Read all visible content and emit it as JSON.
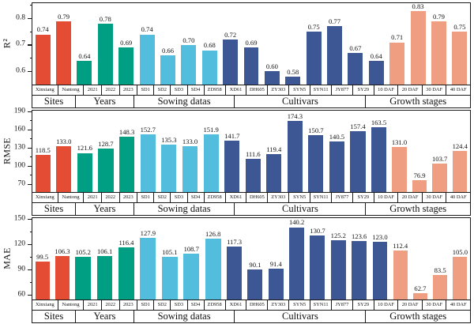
{
  "figure": {
    "background": "#ffffff",
    "axis_color": "#1a1a1a",
    "text_color": "#111111"
  },
  "groups": [
    {
      "label": "Sites",
      "color": "#E44C33",
      "categories": [
        "Xinxiang",
        "Nantong"
      ]
    },
    {
      "label": "Years",
      "color": "#009E82",
      "categories": [
        "2021",
        "2022",
        "2023"
      ]
    },
    {
      "label": "Sowing datas",
      "color": "#53BDDD",
      "categories": [
        "SD1",
        "SD2",
        "SD3",
        "SD4"
      ]
    },
    {
      "label": "Cultivars",
      "color": "#3C5793",
      "categories": [
        "ZD958",
        "XD61",
        "DH605",
        "ZY303",
        "SYN5",
        "SYN11",
        "JY877",
        "SY29"
      ]
    },
    {
      "label": "Growth stages",
      "color": "#F09E82",
      "categories": [
        "10 DAF",
        "20 DAF",
        "30 DAF",
        "40 DAF"
      ]
    }
  ],
  "chart_data": [
    {
      "id": "r2",
      "type": "bar",
      "ylabel": "R²",
      "ylim": [
        0.55,
        0.855
      ],
      "yticks": [
        0.6,
        0.7,
        0.8
      ],
      "ytick_labels": [
        "0.6",
        "0.7",
        "0.8"
      ],
      "minor_yticks": [
        0.65,
        0.75,
        0.85
      ],
      "grid": "off",
      "legend": "none",
      "values": [
        [
          "0.74",
          "0.79"
        ],
        [
          "0.64",
          "0.78",
          "0.69"
        ],
        [
          "0.74",
          "0.66",
          "0.70",
          "0.68"
        ],
        [
          "0.72",
          "0.69",
          "0.60",
          "0.58",
          "0.75",
          "0.77",
          "0.67",
          "0.64"
        ],
        [
          "0.71",
          "0.83",
          "0.79",
          "0.75"
        ]
      ]
    },
    {
      "id": "rmse",
      "type": "bar",
      "ylabel": "RMSE",
      "ylim": [
        57,
        190
      ],
      "yticks": [
        70,
        100,
        130,
        160,
        190
      ],
      "ytick_labels": [
        "70",
        "100",
        "130",
        "160",
        "190"
      ],
      "minor_yticks": [
        85,
        115,
        145,
        175
      ],
      "grid": "off",
      "legend": "none",
      "values": [
        [
          "118.5",
          "133.0"
        ],
        [
          "121.6",
          "128.7",
          "148.3"
        ],
        [
          "152.7",
          "135.3",
          "133.0",
          "151.9"
        ],
        [
          "141.7",
          "111.6",
          "119.4",
          "174.3",
          "150.7",
          "140.5",
          "157.4",
          "163.5"
        ],
        [
          "131.0",
          "76.9",
          "103.7",
          "124.4"
        ]
      ]
    },
    {
      "id": "mae",
      "type": "bar",
      "ylabel": "MAE",
      "ylim": [
        55,
        150
      ],
      "yticks": [
        60,
        90,
        120,
        150
      ],
      "ytick_labels": [
        "60",
        "90",
        "120",
        "150"
      ],
      "minor_yticks": [
        75,
        105,
        135
      ],
      "grid": "off",
      "legend": "none",
      "values": [
        [
          "99.5",
          "106.3"
        ],
        [
          "105.2",
          "106.1",
          "116.4"
        ],
        [
          "127.9",
          "105.1",
          "108.7",
          "126.8"
        ],
        [
          "117.3",
          "90.1",
          "91.4",
          "140.2",
          "130.7",
          "125.2",
          "123.6",
          "123.0"
        ],
        [
          "112.4",
          "62.7",
          "83.5",
          "105.0"
        ]
      ]
    }
  ]
}
